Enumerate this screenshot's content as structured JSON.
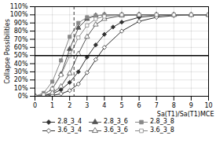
{
  "chart_data": {
    "type": "line",
    "xlabel": "Sa(T1)/Sa(T1)MCE",
    "ylabel": "Collapse Possibilities",
    "xlim": [
      0.0,
      10.0
    ],
    "ylim": [
      0.0,
      1.1
    ],
    "xticks": [
      0,
      1,
      2,
      3,
      4,
      5,
      6,
      7,
      8,
      9,
      10
    ],
    "yticks": [
      {
        "value": 0.0,
        "label": "0%"
      },
      {
        "value": 0.1,
        "label": "10%"
      },
      {
        "value": 0.2,
        "label": "20%"
      },
      {
        "value": 0.3,
        "label": "30%"
      },
      {
        "value": 0.4,
        "label": "40%"
      },
      {
        "value": 0.5,
        "label": "50%"
      },
      {
        "value": 0.6,
        "label": "60%"
      },
      {
        "value": 0.7,
        "label": "70%"
      },
      {
        "value": 0.8,
        "label": "80%"
      },
      {
        "value": 0.9,
        "label": "90%"
      },
      {
        "value": 1.0,
        "label": "100%"
      },
      {
        "value": 1.1,
        "label": "110%"
      }
    ],
    "grid": true,
    "legend": "bottom",
    "hlines": [
      {
        "value": 0.5,
        "line_style": "solid"
      }
    ],
    "vlines": [
      {
        "value": 2.25,
        "line_style": "dashed"
      }
    ],
    "series": [
      {
        "name": "2.8_3_4",
        "color": "#303030",
        "marker": "diamond",
        "line_style": "solid",
        "x": [
          0.0,
          0.5,
          1.0,
          1.5,
          2.0,
          2.5,
          3.0,
          3.5,
          4.0,
          4.5,
          5.0,
          6.0,
          7.0,
          8.0,
          9.0,
          10.0
        ],
        "values": [
          0.0,
          0.01,
          0.03,
          0.08,
          0.17,
          0.3,
          0.48,
          0.63,
          0.76,
          0.85,
          0.91,
          0.97,
          0.99,
          1.0,
          1.0,
          1.0
        ]
      },
      {
        "name": "2.8_3_6",
        "color": "#555555",
        "marker": "triangle",
        "line_style": "solid",
        "x": [
          0.0,
          0.5,
          1.0,
          1.5,
          2.0,
          2.5,
          3.0,
          3.5,
          4.0,
          5.0,
          6.0,
          7.0,
          8.0,
          9.0,
          10.0
        ],
        "values": [
          0.0,
          0.02,
          0.09,
          0.27,
          0.58,
          0.84,
          0.95,
          0.99,
          1.0,
          1.0,
          1.0,
          1.0,
          1.0,
          1.0,
          1.0
        ]
      },
      {
        "name": "2.8_3_8",
        "color": "#888888",
        "marker": "square",
        "line_style": "solid",
        "x": [
          0.0,
          0.5,
          1.0,
          1.5,
          2.0,
          2.5,
          3.0,
          3.5,
          4.0,
          5.0,
          6.0,
          7.0,
          8.0,
          9.0,
          10.0
        ],
        "values": [
          0.0,
          0.04,
          0.18,
          0.44,
          0.73,
          0.9,
          0.97,
          0.99,
          1.0,
          1.0,
          1.0,
          1.0,
          1.0,
          1.0,
          1.0
        ]
      },
      {
        "name": "3.6_3_4",
        "color": "#303030",
        "marker": "diamond-open",
        "line_style": "solid",
        "x": [
          0.0,
          0.5,
          1.0,
          1.5,
          2.0,
          2.5,
          3.0,
          3.5,
          4.0,
          5.0,
          6.0,
          7.0,
          8.0,
          9.0,
          10.0
        ],
        "values": [
          0.0,
          0.0,
          0.01,
          0.03,
          0.07,
          0.15,
          0.29,
          0.45,
          0.6,
          0.8,
          0.92,
          0.97,
          0.99,
          1.0,
          1.0
        ]
      },
      {
        "name": "3.6_3_6",
        "color": "#555555",
        "marker": "triangle-open",
        "line_style": "solid",
        "x": [
          0.0,
          0.5,
          1.0,
          1.5,
          2.0,
          2.5,
          3.0,
          3.5,
          4.0,
          5.0,
          6.0,
          7.0,
          8.0,
          9.0,
          10.0
        ],
        "values": [
          0.0,
          0.01,
          0.04,
          0.12,
          0.28,
          0.52,
          0.73,
          0.88,
          0.95,
          0.99,
          1.0,
          1.0,
          1.0,
          1.0,
          1.0
        ]
      },
      {
        "name": "3.6_3_8",
        "color": "#888888",
        "marker": "square-open",
        "line_style": "solid",
        "x": [
          0.0,
          0.5,
          1.0,
          1.5,
          2.0,
          2.5,
          3.0,
          3.5,
          4.0,
          5.0,
          6.0,
          7.0,
          8.0,
          9.0,
          10.0
        ],
        "values": [
          0.0,
          0.02,
          0.09,
          0.26,
          0.5,
          0.72,
          0.87,
          0.95,
          0.98,
          1.0,
          1.0,
          1.0,
          1.0,
          1.0,
          1.0
        ]
      }
    ]
  }
}
